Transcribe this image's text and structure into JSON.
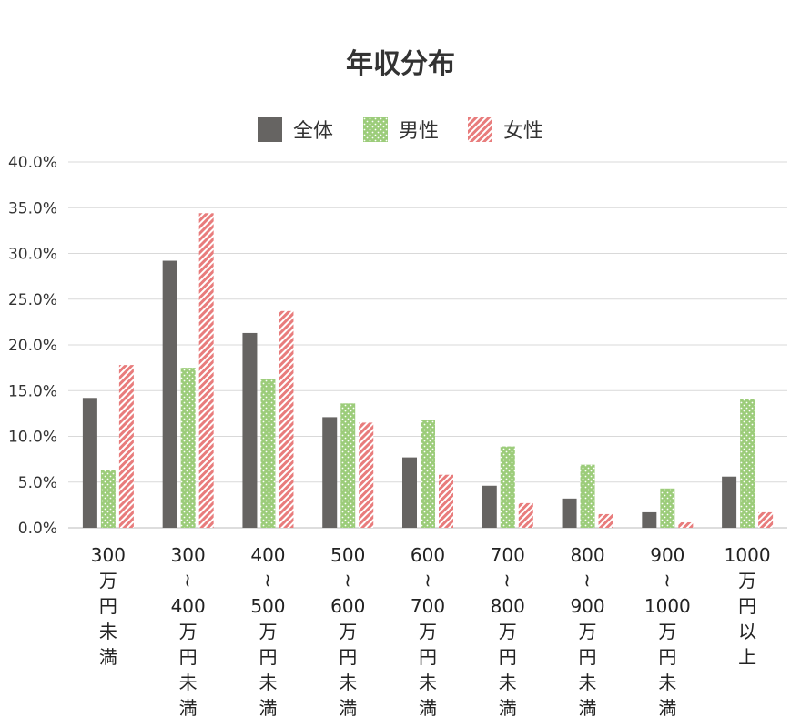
{
  "chart_data": {
    "type": "bar",
    "title": "年収分布",
    "categories": [
      [
        "300",
        "万",
        "円",
        "未",
        "満"
      ],
      [
        "300",
        "~",
        "400",
        "万",
        "円",
        "未",
        "満"
      ],
      [
        "400",
        "~",
        "500",
        "万",
        "円",
        "未",
        "満"
      ],
      [
        "500",
        "~",
        "600",
        "万",
        "円",
        "未",
        "満"
      ],
      [
        "600",
        "~",
        "700",
        "万",
        "円",
        "未",
        "満"
      ],
      [
        "700",
        "~",
        "800",
        "万",
        "円",
        "未",
        "満"
      ],
      [
        "800",
        "~",
        "900",
        "万",
        "円",
        "未",
        "満"
      ],
      [
        "900",
        "~",
        "1000",
        "万",
        "円",
        "未",
        "満"
      ],
      [
        "1000",
        "万",
        "円",
        "以",
        "上"
      ]
    ],
    "series": [
      {
        "name": "全体",
        "color": "#666462",
        "pattern": "solid",
        "values": [
          14.2,
          29.2,
          21.3,
          12.1,
          7.7,
          4.6,
          3.2,
          1.7,
          5.6
        ]
      },
      {
        "name": "男性",
        "color": "#9ccc7a",
        "pattern": "dots",
        "values": [
          6.3,
          17.5,
          16.3,
          13.6,
          11.8,
          8.9,
          6.9,
          4.3,
          14.1
        ]
      },
      {
        "name": "女性",
        "color": "#e87c7c",
        "pattern": "stripes",
        "values": [
          17.8,
          34.4,
          23.7,
          11.5,
          5.8,
          2.7,
          1.5,
          0.6,
          1.7
        ]
      }
    ],
    "ylim": [
      0,
      40
    ],
    "yticks": [
      "0.0%",
      "5.0%",
      "10.0%",
      "15.0%",
      "20.0%",
      "25.0%",
      "30.0%",
      "35.0%",
      "40.0%"
    ],
    "grid": true,
    "legend": "top"
  }
}
